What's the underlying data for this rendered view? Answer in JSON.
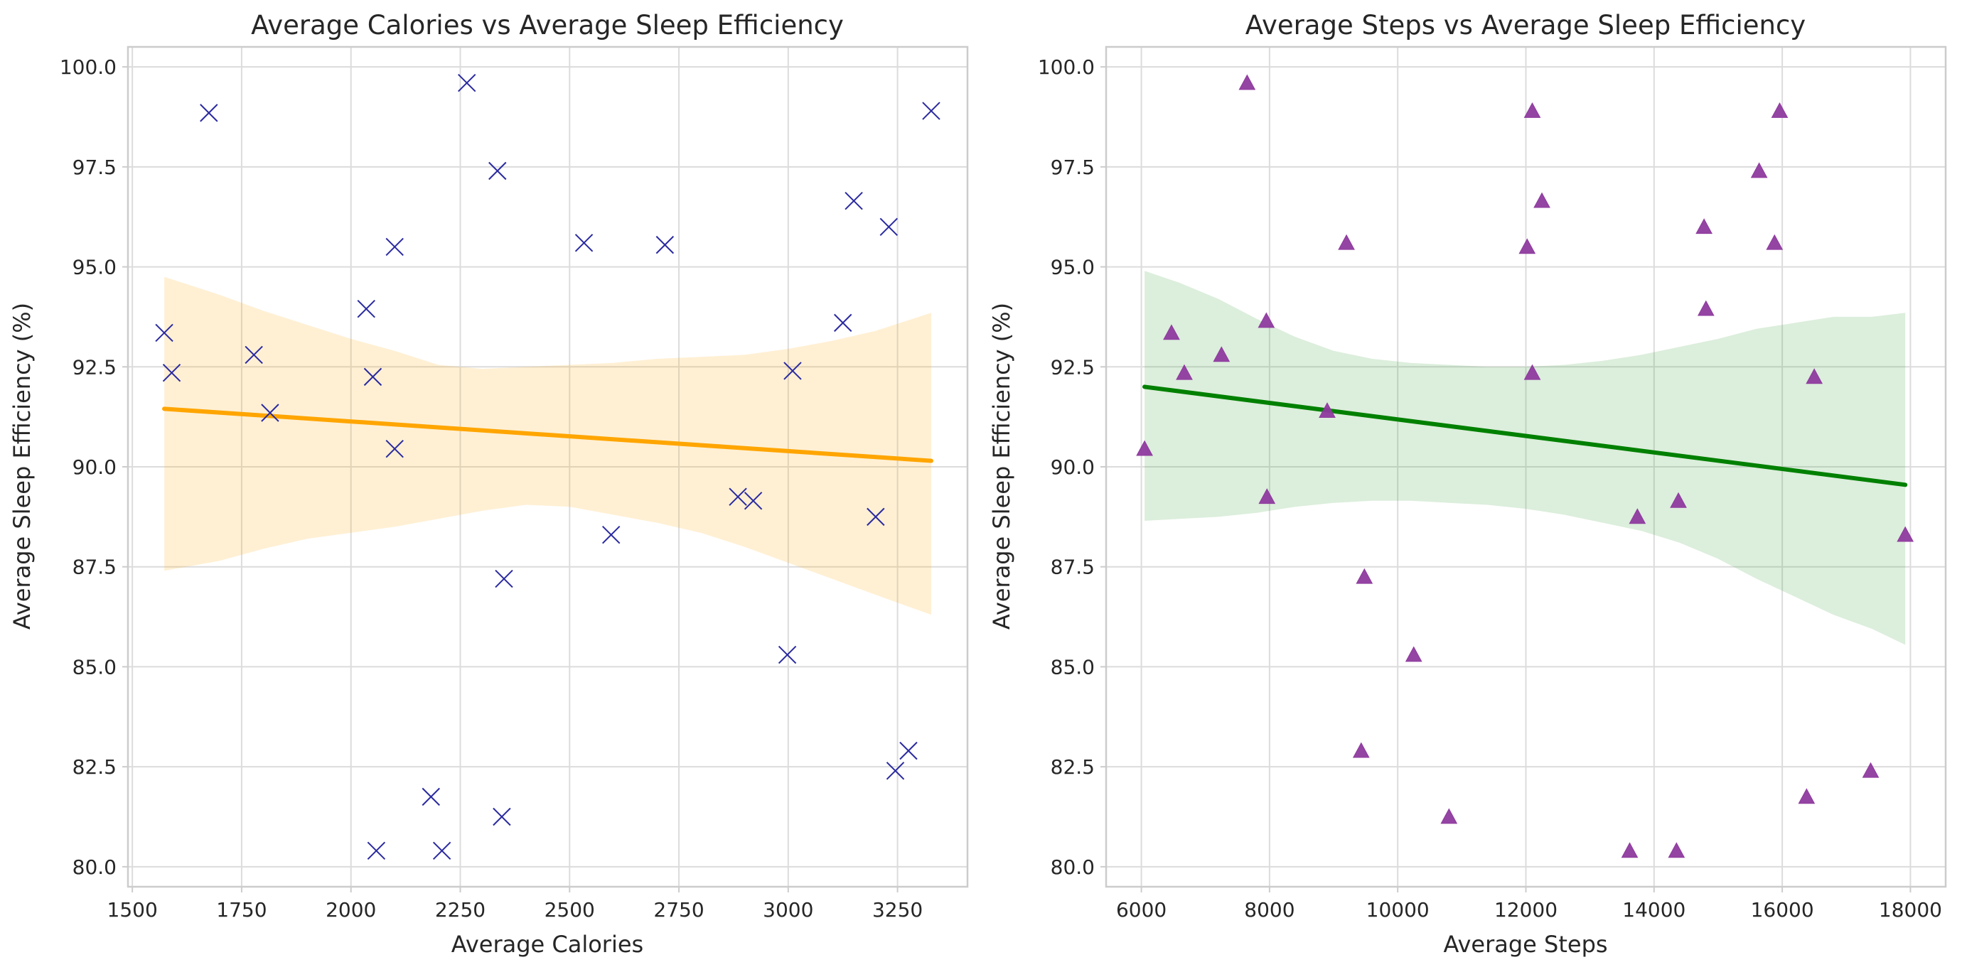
{
  "chart_data": [
    {
      "type": "scatter",
      "title": "Average Calories vs Average Sleep Efficiency",
      "xlabel": "Average Calories",
      "ylabel": "Average Sleep Efficiency (%)",
      "xlim": [
        1490,
        3410
      ],
      "ylim": [
        79.5,
        100.5
      ],
      "xticks": [
        1500,
        1750,
        2000,
        2250,
        2500,
        2750,
        3000,
        3250
      ],
      "xtick_labels": [
        "1500",
        "1750",
        "2000",
        "2250",
        "2500",
        "2750",
        "3000",
        "3250"
      ],
      "yticks": [
        80,
        82.5,
        85,
        87.5,
        90,
        92.5,
        95,
        97.5,
        100
      ],
      "ytick_labels": [
        "80.0",
        "82.5",
        "85.0",
        "87.5",
        "90.0",
        "92.5",
        "95.0",
        "97.5",
        "100.0"
      ],
      "grid": true,
      "marker": "x",
      "point_color": "#2a2aa0",
      "line_color": "#ffa500",
      "band_color": "#ffa500",
      "points": [
        {
          "x": 1573,
          "y": 93.35
        },
        {
          "x": 1590,
          "y": 92.35
        },
        {
          "x": 1675,
          "y": 98.85
        },
        {
          "x": 1778,
          "y": 92.8
        },
        {
          "x": 1815,
          "y": 91.35
        },
        {
          "x": 2035,
          "y": 93.95
        },
        {
          "x": 2050,
          "y": 92.25
        },
        {
          "x": 2058,
          "y": 80.4
        },
        {
          "x": 2100,
          "y": 95.5
        },
        {
          "x": 2100,
          "y": 90.45
        },
        {
          "x": 2183,
          "y": 81.75
        },
        {
          "x": 2208,
          "y": 80.4
        },
        {
          "x": 2265,
          "y": 99.6
        },
        {
          "x": 2335,
          "y": 97.4
        },
        {
          "x": 2345,
          "y": 81.25
        },
        {
          "x": 2350,
          "y": 87.2
        },
        {
          "x": 2533,
          "y": 95.6
        },
        {
          "x": 2595,
          "y": 88.3
        },
        {
          "x": 2718,
          "y": 95.55
        },
        {
          "x": 2885,
          "y": 89.25
        },
        {
          "x": 2920,
          "y": 89.15
        },
        {
          "x": 2998,
          "y": 85.3
        },
        {
          "x": 3010,
          "y": 92.4
        },
        {
          "x": 3125,
          "y": 93.6
        },
        {
          "x": 3150,
          "y": 96.65
        },
        {
          "x": 3200,
          "y": 88.75
        },
        {
          "x": 3230,
          "y": 96.0
        },
        {
          "x": 3245,
          "y": 82.4
        },
        {
          "x": 3275,
          "y": 82.9
        },
        {
          "x": 3327,
          "y": 98.9
        }
      ],
      "regression": {
        "x": [
          1573,
          3327
        ],
        "y": [
          91.45,
          90.15
        ]
      },
      "confidence_band": {
        "x": [
          1573,
          1700,
          1800,
          1900,
          2000,
          2100,
          2200,
          2300,
          2400,
          2500,
          2600,
          2700,
          2800,
          2900,
          3000,
          3100,
          3200,
          3327
        ],
        "upper": [
          94.75,
          94.3,
          93.9,
          93.55,
          93.2,
          92.9,
          92.55,
          92.45,
          92.5,
          92.55,
          92.6,
          92.7,
          92.75,
          92.8,
          92.95,
          93.15,
          93.4,
          93.85
        ],
        "lower": [
          87.4,
          87.65,
          87.95,
          88.2,
          88.35,
          88.5,
          88.7,
          88.9,
          89.05,
          89.0,
          88.8,
          88.6,
          88.35,
          88.0,
          87.6,
          87.2,
          86.8,
          86.3
        ]
      }
    },
    {
      "type": "scatter",
      "title": "Average Steps vs Average Sleep Efficiency",
      "xlabel": "Average Steps",
      "ylabel": "Average Sleep Efficiency (%)",
      "xlim": [
        5450,
        18550
      ],
      "ylim": [
        79.5,
        100.5
      ],
      "xticks": [
        6000,
        8000,
        10000,
        12000,
        14000,
        16000,
        18000
      ],
      "xtick_labels": [
        "6000",
        "8000",
        "10000",
        "12000",
        "14000",
        "16000",
        "18000"
      ],
      "yticks": [
        80,
        82.5,
        85,
        87.5,
        90,
        92.5,
        95,
        97.5,
        100
      ],
      "ytick_labels": [
        "80.0",
        "82.5",
        "85.0",
        "87.5",
        "90.0",
        "92.5",
        "95.0",
        "97.5",
        "100.0"
      ],
      "grid": true,
      "marker": "triangle",
      "point_color": "#8e3a9e",
      "line_color": "#008000",
      "band_color": "#2e9b2e",
      "points": [
        {
          "x": 6050,
          "y": 90.45
        },
        {
          "x": 6470,
          "y": 93.35
        },
        {
          "x": 6670,
          "y": 92.35
        },
        {
          "x": 7250,
          "y": 92.8
        },
        {
          "x": 7650,
          "y": 99.6
        },
        {
          "x": 7950,
          "y": 93.65
        },
        {
          "x": 7960,
          "y": 89.25
        },
        {
          "x": 8900,
          "y": 91.4
        },
        {
          "x": 9200,
          "y": 95.6
        },
        {
          "x": 9430,
          "y": 82.9
        },
        {
          "x": 9480,
          "y": 87.25
        },
        {
          "x": 10250,
          "y": 85.3
        },
        {
          "x": 10800,
          "y": 81.25
        },
        {
          "x": 12020,
          "y": 95.5
        },
        {
          "x": 12100,
          "y": 98.9
        },
        {
          "x": 12100,
          "y": 92.35
        },
        {
          "x": 12250,
          "y": 96.65
        },
        {
          "x": 13620,
          "y": 80.4
        },
        {
          "x": 13740,
          "y": 88.75
        },
        {
          "x": 14350,
          "y": 80.4
        },
        {
          "x": 14380,
          "y": 89.15
        },
        {
          "x": 14780,
          "y": 96.0
        },
        {
          "x": 14810,
          "y": 93.95
        },
        {
          "x": 15640,
          "y": 97.4
        },
        {
          "x": 15880,
          "y": 95.6
        },
        {
          "x": 15960,
          "y": 98.9
        },
        {
          "x": 16380,
          "y": 81.75
        },
        {
          "x": 16500,
          "y": 92.25
        },
        {
          "x": 17380,
          "y": 82.4
        },
        {
          "x": 17920,
          "y": 88.3
        }
      ],
      "regression": {
        "x": [
          6050,
          17920
        ],
        "y": [
          92.0,
          89.55
        ]
      },
      "confidence_band": {
        "x": [
          6050,
          6600,
          7200,
          7800,
          8400,
          9000,
          9600,
          10200,
          10800,
          11400,
          12000,
          12600,
          13200,
          13800,
          14400,
          15000,
          15600,
          16200,
          16800,
          17400,
          17920
        ],
        "upper": [
          94.9,
          94.6,
          94.2,
          93.7,
          93.25,
          92.9,
          92.7,
          92.6,
          92.55,
          92.5,
          92.5,
          92.55,
          92.65,
          92.8,
          93.0,
          93.2,
          93.45,
          93.6,
          93.75,
          93.75,
          93.85
        ],
        "lower": [
          88.65,
          88.7,
          88.75,
          88.85,
          89.0,
          89.1,
          89.15,
          89.15,
          89.1,
          89.05,
          88.95,
          88.8,
          88.6,
          88.4,
          88.1,
          87.7,
          87.2,
          86.75,
          86.3,
          85.95,
          85.55
        ]
      }
    }
  ]
}
